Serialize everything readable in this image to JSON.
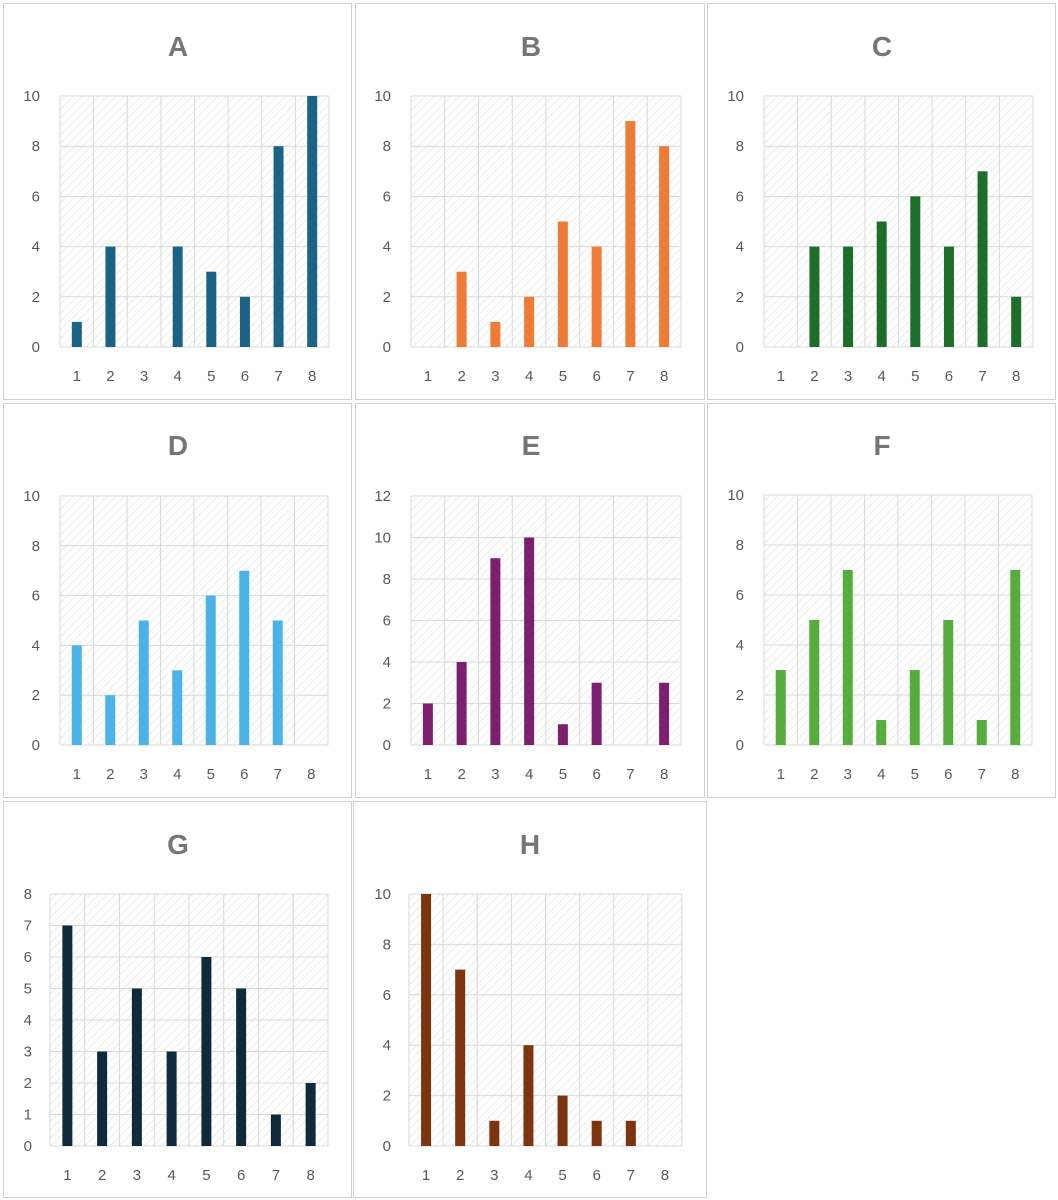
{
  "chart_data": [
    {
      "type": "bar",
      "title": "A",
      "categories": [
        "1",
        "2",
        "3",
        "4",
        "5",
        "6",
        "7",
        "8"
      ],
      "values": [
        1,
        4,
        0,
        4,
        3,
        2,
        8,
        10
      ],
      "ylim": [
        0,
        10
      ],
      "yticks": [
        "0",
        "2",
        "4",
        "6",
        "8",
        "10"
      ],
      "color": "#1a6385",
      "grid": true,
      "legend": "none"
    },
    {
      "type": "bar",
      "title": "B",
      "categories": [
        "1",
        "2",
        "3",
        "4",
        "5",
        "6",
        "7",
        "8"
      ],
      "values": [
        0,
        3,
        1,
        2,
        5,
        4,
        9,
        8
      ],
      "ylim": [
        0,
        10
      ],
      "yticks": [
        "0",
        "2",
        "4",
        "6",
        "8",
        "10"
      ],
      "color": "#ee7b36",
      "grid": true,
      "legend": "none"
    },
    {
      "type": "bar",
      "title": "C",
      "categories": [
        "1",
        "2",
        "3",
        "4",
        "5",
        "6",
        "7",
        "8"
      ],
      "values": [
        0,
        4,
        4,
        5,
        6,
        4,
        7,
        2
      ],
      "ylim": [
        0,
        10
      ],
      "yticks": [
        "0",
        "2",
        "4",
        "6",
        "8",
        "10"
      ],
      "color": "#1c6e2a",
      "grid": true,
      "legend": "none"
    },
    {
      "type": "bar",
      "title": "D",
      "categories": [
        "1",
        "2",
        "3",
        "4",
        "5",
        "6",
        "7",
        "8"
      ],
      "values": [
        4,
        2,
        5,
        3,
        6,
        7,
        5,
        0
      ],
      "ylim": [
        0,
        10
      ],
      "yticks": [
        "0",
        "2",
        "4",
        "6",
        "8",
        "10"
      ],
      "color": "#4bb3e8",
      "grid": true,
      "legend": "none"
    },
    {
      "type": "bar",
      "title": "E",
      "categories": [
        "1",
        "2",
        "3",
        "4",
        "5",
        "6",
        "7",
        "8"
      ],
      "values": [
        2,
        4,
        9,
        10,
        1,
        3,
        0,
        3
      ],
      "ylim": [
        0,
        12
      ],
      "yticks": [
        "0",
        "2",
        "4",
        "6",
        "8",
        "10",
        "12"
      ],
      "color": "#7b1f6e",
      "grid": true,
      "legend": "none"
    },
    {
      "type": "bar",
      "title": "F",
      "categories": [
        "1",
        "2",
        "3",
        "4",
        "5",
        "6",
        "7",
        "8"
      ],
      "values": [
        3,
        5,
        7,
        1,
        3,
        5,
        1,
        7
      ],
      "ylim": [
        0,
        10
      ],
      "yticks": [
        "0",
        "2",
        "4",
        "6",
        "8",
        "10"
      ],
      "color": "#56ad3d",
      "grid": true,
      "legend": "none"
    },
    {
      "type": "bar",
      "title": "G",
      "categories": [
        "1",
        "2",
        "3",
        "4",
        "5",
        "6",
        "7",
        "8"
      ],
      "values": [
        7,
        3,
        5,
        3,
        6,
        5,
        1,
        2
      ],
      "ylim": [
        0,
        8
      ],
      "yticks": [
        "0",
        "1",
        "2",
        "3",
        "4",
        "5",
        "6",
        "7",
        "8"
      ],
      "color": "#0f2a3a",
      "grid": true,
      "legend": "none"
    },
    {
      "type": "bar",
      "title": "H",
      "categories": [
        "1",
        "2",
        "3",
        "4",
        "5",
        "6",
        "7",
        "8"
      ],
      "values": [
        10,
        7,
        1,
        4,
        2,
        1,
        1,
        0
      ],
      "ylim": [
        0,
        10
      ],
      "yticks": [
        "0",
        "2",
        "4",
        "6",
        "8",
        "10"
      ],
      "color": "#7d3510",
      "grid": true,
      "legend": "none"
    }
  ]
}
